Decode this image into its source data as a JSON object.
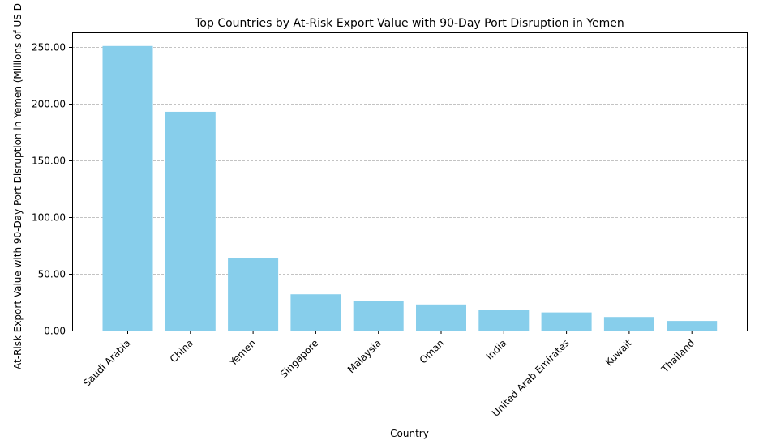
{
  "chart_data": {
    "type": "bar",
    "title": "Top Countries by At-Risk Export Value with 90-Day Port Disruption in Yemen",
    "xlabel": "Country",
    "ylabel": "At-Risk Export Value with 90-Day Port Disruption in Yemen (Millions of US D",
    "categories": [
      "Saudi Arabia",
      "China",
      "Yemen",
      "Singapore",
      "Malaysia",
      "Oman",
      "India",
      "United Arab Emirates",
      "Kuwait",
      "Thailand"
    ],
    "values": [
      251,
      193,
      64,
      32,
      26,
      23,
      18.5,
      16,
      12,
      8.5
    ],
    "yticks": [
      "0.00",
      "50.00",
      "100.00",
      "150.00",
      "200.00",
      "250.00"
    ],
    "ylim": [
      0,
      263
    ],
    "grid": "horizontal dashed",
    "bar_color": "#87CEEB",
    "grid_color": "#b0b0b0",
    "axis_color": "#000000"
  }
}
